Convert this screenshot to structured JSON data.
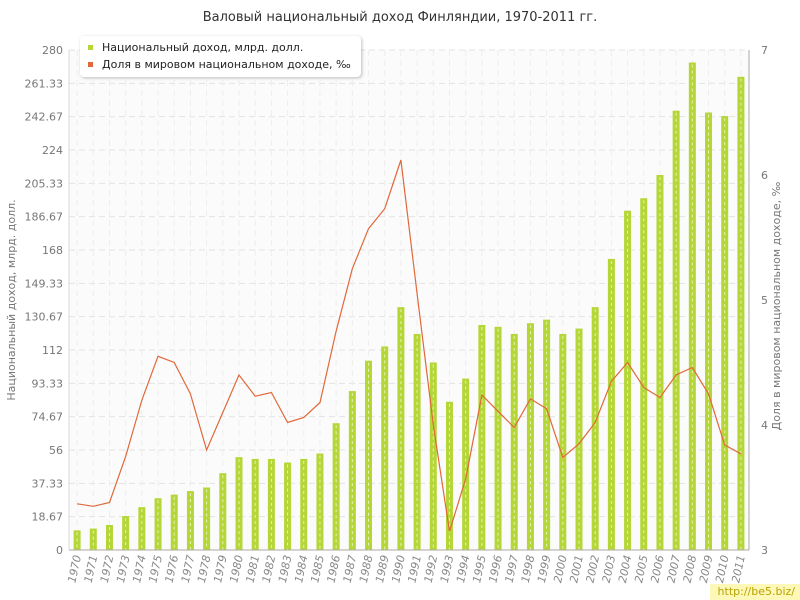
{
  "chart_data": {
    "type": "bar+line",
    "title": "Валовый национальный доход Финляндии, 1970-2011 гг.",
    "categories": [
      "1970",
      "1971",
      "1972",
      "1973",
      "1974",
      "1975",
      "1976",
      "1977",
      "1978",
      "1979",
      "1980",
      "1981",
      "1982",
      "1983",
      "1984",
      "1985",
      "1986",
      "1987",
      "1988",
      "1989",
      "1990",
      "1991",
      "1992",
      "1993",
      "1994",
      "1995",
      "1996",
      "1997",
      "1998",
      "1999",
      "2000",
      "2001",
      "2002",
      "2003",
      "2004",
      "2005",
      "2006",
      "2007",
      "2008",
      "2009",
      "2010",
      "2011"
    ],
    "series": [
      {
        "name": "Национальный доход, млрд. долл.",
        "type": "bar",
        "axis": "left",
        "color": "#b5d637",
        "values": [
          11,
          12,
          14,
          19,
          24,
          29,
          31,
          33,
          35,
          43,
          52,
          51,
          51,
          49,
          51,
          54,
          71,
          89,
          106,
          114,
          136,
          121,
          105,
          83,
          96,
          126,
          125,
          121,
          127,
          129,
          121,
          124,
          136,
          163,
          190,
          197,
          210,
          246,
          273,
          245,
          243,
          265
        ]
      },
      {
        "name": "Доля в мировом национальном доходе, ‰",
        "type": "line",
        "axis": "right",
        "color": "#e0683a",
        "values": [
          3.37,
          3.35,
          3.38,
          3.75,
          4.2,
          4.55,
          4.5,
          4.25,
          3.8,
          4.1,
          4.4,
          4.23,
          4.26,
          4.02,
          4.06,
          4.18,
          4.75,
          5.25,
          5.57,
          5.73,
          6.12,
          5.05,
          4.0,
          3.15,
          3.57,
          4.24,
          4.11,
          3.98,
          4.21,
          4.13,
          3.74,
          3.85,
          4.02,
          4.35,
          4.5,
          4.3,
          4.22,
          4.4,
          4.46,
          4.25,
          3.84,
          3.77
        ]
      }
    ],
    "left_axis": {
      "label": "Национальный доход, млрд. долл.",
      "range": [
        0,
        280
      ],
      "ticks": [
        "0",
        "18.67",
        "37.33",
        "56",
        "74.67",
        "93.33",
        "112",
        "130.67",
        "149.33",
        "168",
        "186.67",
        "205.33",
        "224",
        "242.67",
        "261.33",
        "280"
      ]
    },
    "right_axis": {
      "label": "Доля в мировом национальном доходе, ‰",
      "range": [
        3,
        7
      ],
      "ticks": [
        "3",
        "4",
        "5",
        "6",
        "7"
      ]
    },
    "grid": true,
    "legend_position": "top-left"
  },
  "watermark": "http://be5.biz/"
}
